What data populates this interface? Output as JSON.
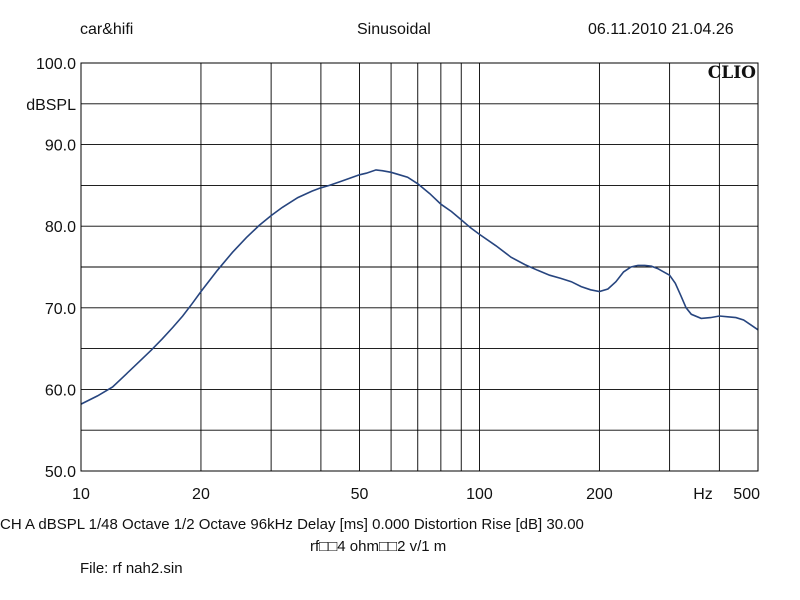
{
  "header": {
    "left": "car&hifi",
    "center": "Sinusoidal",
    "right": "06.11.2010 21.04.26"
  },
  "brand": "CLIO",
  "footer": {
    "settings_line": "CH A   dBSPL    1/48 Octave    1/2 Octave    96kHz    Delay [ms] 0.000    Distortion Rise [dB] 30.00",
    "comment": "rf□□4 ohm□□2 v/1 m",
    "file": "File: rf nah2.sin"
  },
  "colors": {
    "curve": "#27457f",
    "grid": "#000000"
  },
  "chart_data": {
    "type": "line",
    "title": "",
    "xlabel": "Hz",
    "ylabel": "dBSPL",
    "x_scale": "log",
    "xlim": [
      10,
      500
    ],
    "ylim": [
      50,
      100
    ],
    "grid": true,
    "x_tick_labels": [
      {
        "value": 10,
        "label": "10"
      },
      {
        "value": 20,
        "label": "20"
      },
      {
        "value": 50,
        "label": "50"
      },
      {
        "value": 100,
        "label": "100"
      },
      {
        "value": 200,
        "label": "200"
      },
      {
        "value": 500,
        "label": "500"
      }
    ],
    "y_tick_labels": [
      {
        "value": 100,
        "label": "100.0"
      },
      {
        "value": 90,
        "label": "90.0"
      },
      {
        "value": 80,
        "label": "80.0"
      },
      {
        "value": 70,
        "label": "70.0"
      },
      {
        "value": 60,
        "label": "60.0"
      },
      {
        "value": 50,
        "label": "50.0"
      }
    ],
    "series": [
      {
        "x": [
          10,
          11,
          12,
          13,
          14,
          15,
          16,
          17,
          18,
          19,
          20,
          22,
          24,
          26,
          28,
          30,
          32,
          35,
          38,
          40,
          42,
          45,
          48,
          50,
          52,
          55,
          57,
          60,
          63,
          66,
          70,
          75,
          80,
          85,
          90,
          95,
          100,
          110,
          120,
          130,
          140,
          150,
          160,
          170,
          180,
          190,
          200,
          210,
          220,
          230,
          240,
          250,
          260,
          270,
          280,
          290,
          300,
          310,
          320,
          330,
          340,
          360,
          380,
          400,
          420,
          440,
          460,
          480,
          500
        ],
        "y": [
          58.2,
          59.2,
          60.3,
          61.9,
          63.4,
          64.8,
          66.2,
          67.6,
          69.0,
          70.5,
          72.0,
          74.6,
          76.8,
          78.6,
          80.1,
          81.3,
          82.3,
          83.5,
          84.3,
          84.7,
          85.0,
          85.5,
          86.0,
          86.3,
          86.5,
          86.9,
          86.8,
          86.6,
          86.3,
          86.0,
          85.2,
          84.0,
          82.7,
          81.8,
          80.8,
          79.8,
          79.0,
          77.6,
          76.2,
          75.3,
          74.6,
          74.0,
          73.6,
          73.2,
          72.6,
          72.2,
          72.0,
          72.3,
          73.2,
          74.4,
          75.0,
          75.2,
          75.2,
          75.1,
          74.8,
          74.4,
          74.0,
          73.0,
          71.5,
          70.0,
          69.2,
          68.7,
          68.8,
          69.0,
          68.9,
          68.8,
          68.5,
          67.9,
          67.3
        ]
      }
    ]
  }
}
